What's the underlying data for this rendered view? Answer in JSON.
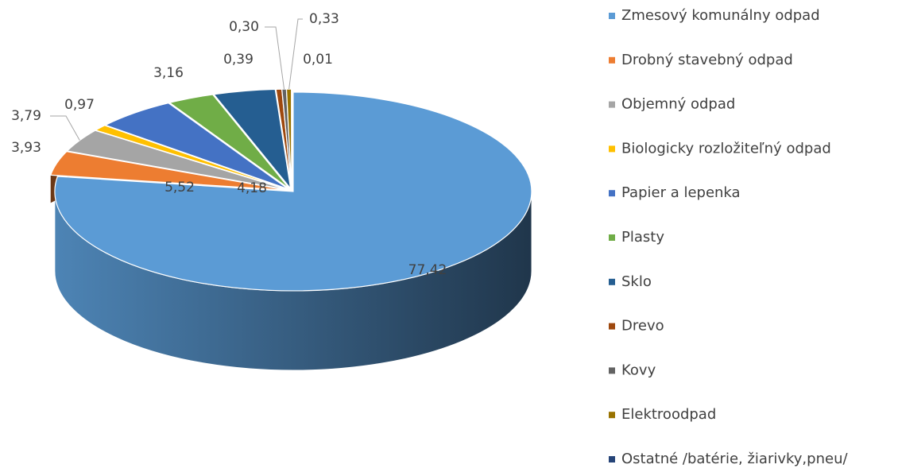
{
  "chart_data": {
    "type": "pie",
    "three_d": true,
    "legend": "right",
    "categories": [
      "Zmesový komunálny odpad",
      "Drobný stavebný odpad",
      "Objemný odpad",
      "Biologicky rozložiteľný odpad",
      "Papier a lepenka",
      "Plasty",
      "Sklo",
      "Drevo",
      "Kovy",
      "Elektroodpad",
      "Ostatné /batérie, žiarivky,pneu/"
    ],
    "values": [
      77.42,
      3.93,
      3.79,
      0.97,
      5.52,
      3.16,
      4.18,
      0.39,
      0.3,
      0.33,
      0.01
    ],
    "value_labels": [
      "77,42",
      "3,93",
      "3,79",
      "0,97",
      "5,52",
      "3,16",
      "4,18",
      "0,39",
      "0,30",
      "0,33",
      "0,01"
    ],
    "colors": [
      "#5b9bd5",
      "#ed7d31",
      "#a5a5a5",
      "#ffc000",
      "#4472c4",
      "#70ad47",
      "#255e91",
      "#9e480e",
      "#636363",
      "#997300",
      "#264478"
    ]
  }
}
